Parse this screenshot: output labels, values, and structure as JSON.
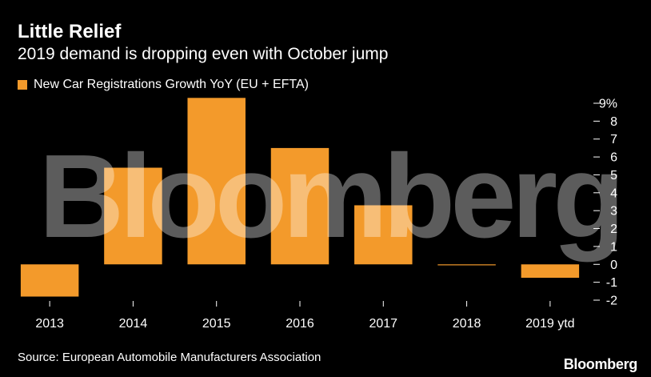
{
  "header": {
    "title": "Little Relief",
    "subtitle": "2019 demand is dropping even with October jump"
  },
  "footer": {
    "source": "Source: European Automobile Manufacturers Association",
    "brand": "Bloomberg"
  },
  "watermark": "Bloomberg",
  "colors": {
    "background": "#000000",
    "bar": "#f39a2b",
    "text": "#ffffff",
    "tick": "#ffffff"
  },
  "chart_data": {
    "type": "bar",
    "categories": [
      "2013",
      "2014",
      "2015",
      "2016",
      "2017",
      "2018",
      "2019 ytd"
    ],
    "series": [
      {
        "name": "New Car Registrations Growth YoY (EU + EFTA)",
        "values": [
          -1.8,
          5.4,
          9.3,
          6.5,
          3.3,
          -0.04,
          -0.75
        ]
      }
    ],
    "ylim": [
      -2,
      9
    ],
    "yticks": [
      -2,
      -1,
      0,
      1,
      2,
      3,
      4,
      5,
      6,
      7,
      8,
      9
    ],
    "ytick_labels": [
      "-2",
      "-1",
      "0",
      "1",
      "2",
      "3",
      "4",
      "5",
      "6",
      "7",
      "8",
      "9%"
    ],
    "y_axis_position": "right",
    "grid": false,
    "legend_position": "top-left"
  }
}
